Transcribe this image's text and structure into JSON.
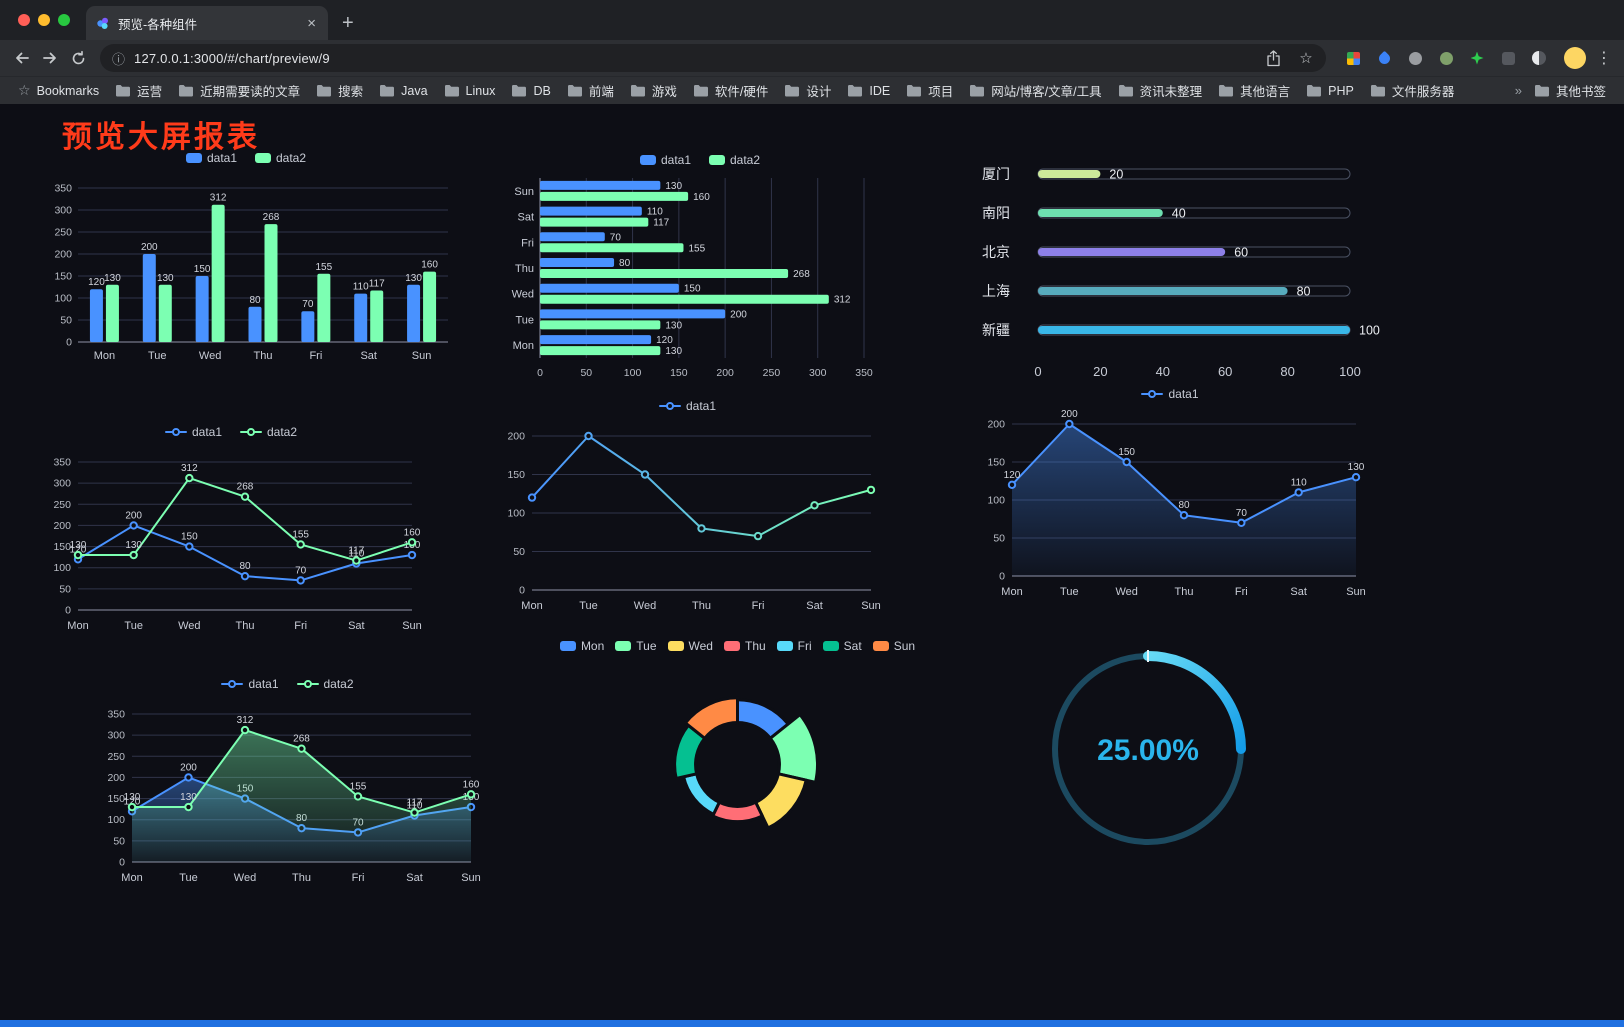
{
  "window": {
    "tab_title": "预览-各种组件",
    "toolbar": {
      "url": "127.0.0.1:3000/#/chart/preview/9"
    },
    "bookmarks": {
      "first": "Bookmarks",
      "folders": [
        "运营",
        "近期需要读的文章",
        "搜索",
        "Java",
        "Linux",
        "DB",
        "前端",
        "游戏",
        "软件/硬件",
        "设计",
        "IDE",
        "项目",
        "网站/博客/文章/工具",
        "资讯未整理",
        "其他语言",
        "PHP",
        "文件服务器"
      ],
      "overflow": "»",
      "other": "其他书签"
    }
  },
  "icons": {
    "close": "×",
    "plus": "+",
    "menu": "⋮",
    "star": "☆",
    "info": "ⓘ"
  },
  "page": {
    "title": "预览大屏报表",
    "title_color": "#ff3b1a",
    "background": "#0d0e15"
  },
  "chart_data": [
    {
      "id": "bar-grouped",
      "type": "bar",
      "categories": [
        "Mon",
        "Tue",
        "Wed",
        "Thu",
        "Fri",
        "Sat",
        "Sun"
      ],
      "series": [
        {
          "name": "data1",
          "color": "#4992ff",
          "values": [
            120,
            200,
            150,
            80,
            70,
            110,
            130
          ]
        },
        {
          "name": "data2",
          "color": "#7cffb2",
          "values": [
            130,
            130,
            312,
            268,
            155,
            117,
            160
          ]
        }
      ],
      "ylim": [
        0,
        350
      ],
      "ytick": 50,
      "show_labels": true,
      "legend_position": "top",
      "grid": true
    },
    {
      "id": "hbar-grouped",
      "type": "hbar",
      "categories": [
        "Mon",
        "Tue",
        "Wed",
        "Thu",
        "Fri",
        "Sat",
        "Sun"
      ],
      "series": [
        {
          "name": "data1",
          "color": "#4992ff",
          "values": [
            120,
            200,
            150,
            80,
            70,
            110,
            130
          ]
        },
        {
          "name": "data2",
          "color": "#7cffb2",
          "values": [
            130,
            130,
            312,
            268,
            155,
            117,
            160
          ]
        }
      ],
      "xlim": [
        0,
        350
      ],
      "xtick": 50,
      "show_labels": true,
      "legend_position": "top",
      "grid": true
    },
    {
      "id": "capsule",
      "type": "capsule",
      "max": 100,
      "axis_ticks": [
        0,
        20,
        40,
        60,
        80,
        100
      ],
      "items": [
        {
          "label": "厦门",
          "value": 20,
          "color": "#cdea9a"
        },
        {
          "label": "南阳",
          "value": 40,
          "color": "#6ee0b0"
        },
        {
          "label": "北京",
          "value": 60,
          "color": "#8d80e8"
        },
        {
          "label": "上海",
          "value": 80,
          "color": "#57abbd"
        },
        {
          "label": "新疆",
          "value": 100,
          "color": "#39b7e8"
        }
      ]
    },
    {
      "id": "line-two",
      "type": "line",
      "categories": [
        "Mon",
        "Tue",
        "Wed",
        "Thu",
        "Fri",
        "Sat",
        "Sun"
      ],
      "series": [
        {
          "name": "data1",
          "color": "#4992ff",
          "values": [
            120,
            200,
            150,
            80,
            70,
            110,
            130
          ]
        },
        {
          "name": "data2",
          "color": "#7cffb2",
          "values": [
            130,
            130,
            312,
            268,
            155,
            117,
            160
          ]
        }
      ],
      "ylim": [
        0,
        350
      ],
      "ytick": 50,
      "show_labels": true,
      "legend_position": "top",
      "grid": true
    },
    {
      "id": "line-gradient",
      "type": "line",
      "categories": [
        "Mon",
        "Tue",
        "Wed",
        "Thu",
        "Fri",
        "Sat",
        "Sun"
      ],
      "series": [
        {
          "name": "data1",
          "gradient": [
            "#4992ff",
            "#7cffb2"
          ],
          "values": [
            120,
            200,
            150,
            80,
            70,
            110,
            130
          ]
        }
      ],
      "ylim": [
        0,
        200
      ],
      "ytick": 50,
      "show_labels": false,
      "legend_position": "top",
      "grid": true
    },
    {
      "id": "area-one",
      "type": "line",
      "categories": [
        "Mon",
        "Tue",
        "Wed",
        "Thu",
        "Fri",
        "Sat",
        "Sun"
      ],
      "series": [
        {
          "name": "data1",
          "color": "#4992ff",
          "values": [
            120,
            200,
            150,
            80,
            70,
            110,
            130
          ],
          "area": true
        }
      ],
      "ylim": [
        0,
        200
      ],
      "ytick": 50,
      "show_labels": true,
      "legend_position": "top",
      "grid": true
    },
    {
      "id": "line-area-two",
      "type": "line",
      "categories": [
        "Mon",
        "Tue",
        "Wed",
        "Thu",
        "Fri",
        "Sat",
        "Sun"
      ],
      "series": [
        {
          "name": "data1",
          "color": "#4992ff",
          "values": [
            120,
            200,
            150,
            80,
            70,
            110,
            130
          ],
          "area": true
        },
        {
          "name": "data2",
          "color": "#7cffb2",
          "values": [
            130,
            130,
            312,
            268,
            155,
            117,
            160
          ],
          "area": true
        }
      ],
      "ylim": [
        0,
        350
      ],
      "ytick": 50,
      "show_labels": true,
      "legend_position": "top",
      "grid": true
    },
    {
      "id": "rose",
      "type": "pie",
      "style": "rose-donut",
      "categories": [
        "Mon",
        "Tue",
        "Wed",
        "Thu",
        "Fri",
        "Sat",
        "Sun"
      ],
      "values": [
        120,
        200,
        150,
        80,
        70,
        110,
        130
      ],
      "colors": [
        "#4992ff",
        "#7cffb2",
        "#fddd60",
        "#ff6e76",
        "#58d9f9",
        "#05c091",
        "#ff8a45"
      ],
      "legend_position": "top"
    },
    {
      "id": "gauge",
      "type": "gauge",
      "value": 25,
      "label": "25.00%",
      "color": "#2ab5ec",
      "track_color": "#1c4a60"
    }
  ]
}
